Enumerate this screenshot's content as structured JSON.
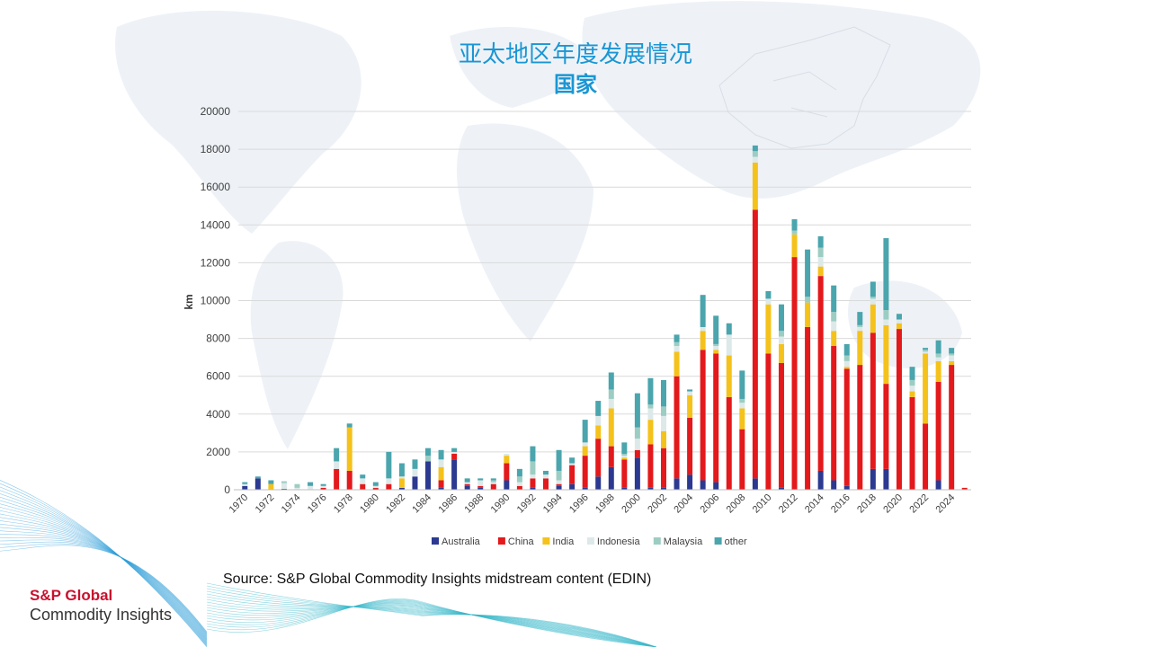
{
  "title": "亚太地区年度发展情况",
  "subtitle": "国家",
  "source": "Source: S&P Global Commodity Insights midstream content (EDIN)",
  "brand": {
    "line1": "S&P Global",
    "line2": "Commodity Insights"
  },
  "colors": {
    "Australia": "#2b3990",
    "China": "#e3191c",
    "India": "#f5c21b",
    "Indonesia": "#dde9e9",
    "Malaysia": "#9ccdc3",
    "other": "#4aa5ad"
  },
  "chart_data": {
    "type": "bar",
    "stacked": true,
    "title": "",
    "xlabel": "",
    "ylabel": "km",
    "ylim": [
      0,
      20000
    ],
    "yticks": [
      0,
      2000,
      4000,
      6000,
      8000,
      10000,
      12000,
      14000,
      16000,
      18000,
      20000
    ],
    "ytick_labels": [
      "0",
      "2000",
      "4000",
      "6000",
      "8000",
      "10000",
      "12000",
      "14000",
      "16000",
      "18000",
      "20000"
    ],
    "xtick_labels": [
      "1970",
      "1972",
      "1974",
      "1976",
      "1978",
      "1980",
      "1982",
      "1984",
      "1986",
      "1988",
      "1990",
      "1992",
      "1994",
      "1996",
      "1998",
      "2000",
      "2002",
      "2004",
      "2006",
      "2008",
      "2010",
      "2012",
      "2014",
      "2016",
      "2018",
      "2020",
      "2022",
      "2024"
    ],
    "grid": true,
    "legend": "bottom",
    "categories": [
      "1970",
      "1971",
      "1972",
      "1973",
      "1974",
      "1975",
      "1976",
      "1977",
      "1978",
      "1979",
      "1980",
      "1981",
      "1982",
      "1983",
      "1984",
      "1985",
      "1986",
      "1987",
      "1988",
      "1989",
      "1990",
      "1991",
      "1992",
      "1993",
      "1994",
      "1995",
      "1996",
      "1997",
      "1998",
      "1999",
      "2000",
      "2001",
      "2002",
      "2003",
      "2004",
      "2005",
      "2006",
      "2007",
      "2008",
      "2009",
      "2010",
      "2011",
      "2012",
      "2013",
      "2014",
      "2015",
      "2016",
      "2017",
      "2018",
      "2019",
      "2020",
      "2021",
      "2022",
      "2023",
      "2024",
      "2025"
    ],
    "series": [
      {
        "name": "Australia",
        "values": [
          200,
          600,
          0,
          50,
          0,
          0,
          0,
          0,
          0,
          0,
          50,
          0,
          100,
          700,
          1500,
          100,
          1600,
          200,
          100,
          0,
          500,
          0,
          100,
          0,
          200,
          300,
          100,
          700,
          1200,
          100,
          1700,
          100,
          100,
          600,
          800,
          500,
          400,
          0,
          0,
          600,
          0,
          100,
          0,
          0,
          1000,
          500,
          200,
          0,
          1100,
          1100,
          0,
          0,
          0,
          500,
          0,
          0
        ]
      },
      {
        "name": "China",
        "values": [
          0,
          0,
          0,
          0,
          0,
          0,
          100,
          1100,
          1000,
          300,
          50,
          300,
          0,
          0,
          0,
          400,
          300,
          100,
          100,
          300,
          900,
          200,
          500,
          600,
          100,
          1000,
          1700,
          2000,
          1100,
          1500,
          400,
          2300,
          2100,
          5400,
          3000,
          6900,
          6800,
          4900,
          3200,
          14200,
          7200,
          6600,
          12300,
          8600,
          10300,
          7100,
          6200,
          6600,
          7200,
          4500,
          8500,
          4900,
          3500,
          5200,
          6600,
          100
        ]
      },
      {
        "name": "India",
        "values": [
          0,
          0,
          300,
          0,
          0,
          0,
          0,
          0,
          2300,
          0,
          0,
          0,
          500,
          0,
          0,
          700,
          0,
          0,
          0,
          0,
          400,
          0,
          0,
          0,
          0,
          0,
          500,
          700,
          2000,
          100,
          0,
          1300,
          900,
          1300,
          1200,
          1000,
          200,
          2200,
          1100,
          2500,
          2600,
          1000,
          1200,
          1300,
          500,
          800,
          100,
          1800,
          1500,
          3100,
          300,
          300,
          3700,
          1100,
          200,
          0
        ]
      },
      {
        "name": "Indonesia",
        "values": [
          100,
          0,
          0,
          300,
          100,
          200,
          100,
          400,
          0,
          300,
          100,
          300,
          100,
          400,
          0,
          400,
          100,
          100,
          300,
          100,
          100,
          200,
          200,
          200,
          200,
          100,
          200,
          500,
          500,
          100,
          600,
          600,
          800,
          300,
          200,
          200,
          200,
          1100,
          300,
          300,
          300,
          400,
          0,
          0,
          500,
          500,
          300,
          200,
          300,
          300,
          200,
          300,
          100,
          200,
          300,
          0
        ]
      },
      {
        "name": "Malaysia",
        "values": [
          0,
          0,
          0,
          100,
          200,
          0,
          0,
          0,
          0,
          0,
          0,
          0,
          0,
          0,
          300,
          0,
          0,
          0,
          0,
          100,
          0,
          300,
          700,
          0,
          500,
          0,
          0,
          0,
          500,
          100,
          600,
          200,
          500,
          200,
          0,
          0,
          100,
          0,
          200,
          300,
          0,
          300,
          200,
          300,
          500,
          500,
          300,
          100,
          100,
          500,
          0,
          300,
          100,
          200,
          100,
          0
        ]
      },
      {
        "name": "other",
        "values": [
          100,
          100,
          200,
          0,
          0,
          200,
          100,
          700,
          200,
          200,
          200,
          1400,
          700,
          500,
          400,
          500,
          200,
          200,
          100,
          100,
          0,
          400,
          800,
          200,
          1100,
          300,
          1200,
          800,
          900,
          600,
          1800,
          1400,
          1400,
          400,
          100,
          1700,
          1500,
          600,
          1500,
          300,
          400,
          1400,
          600,
          2500,
          600,
          1400,
          600,
          700,
          800,
          3800,
          300,
          700,
          100,
          700,
          300,
          0
        ]
      }
    ]
  }
}
